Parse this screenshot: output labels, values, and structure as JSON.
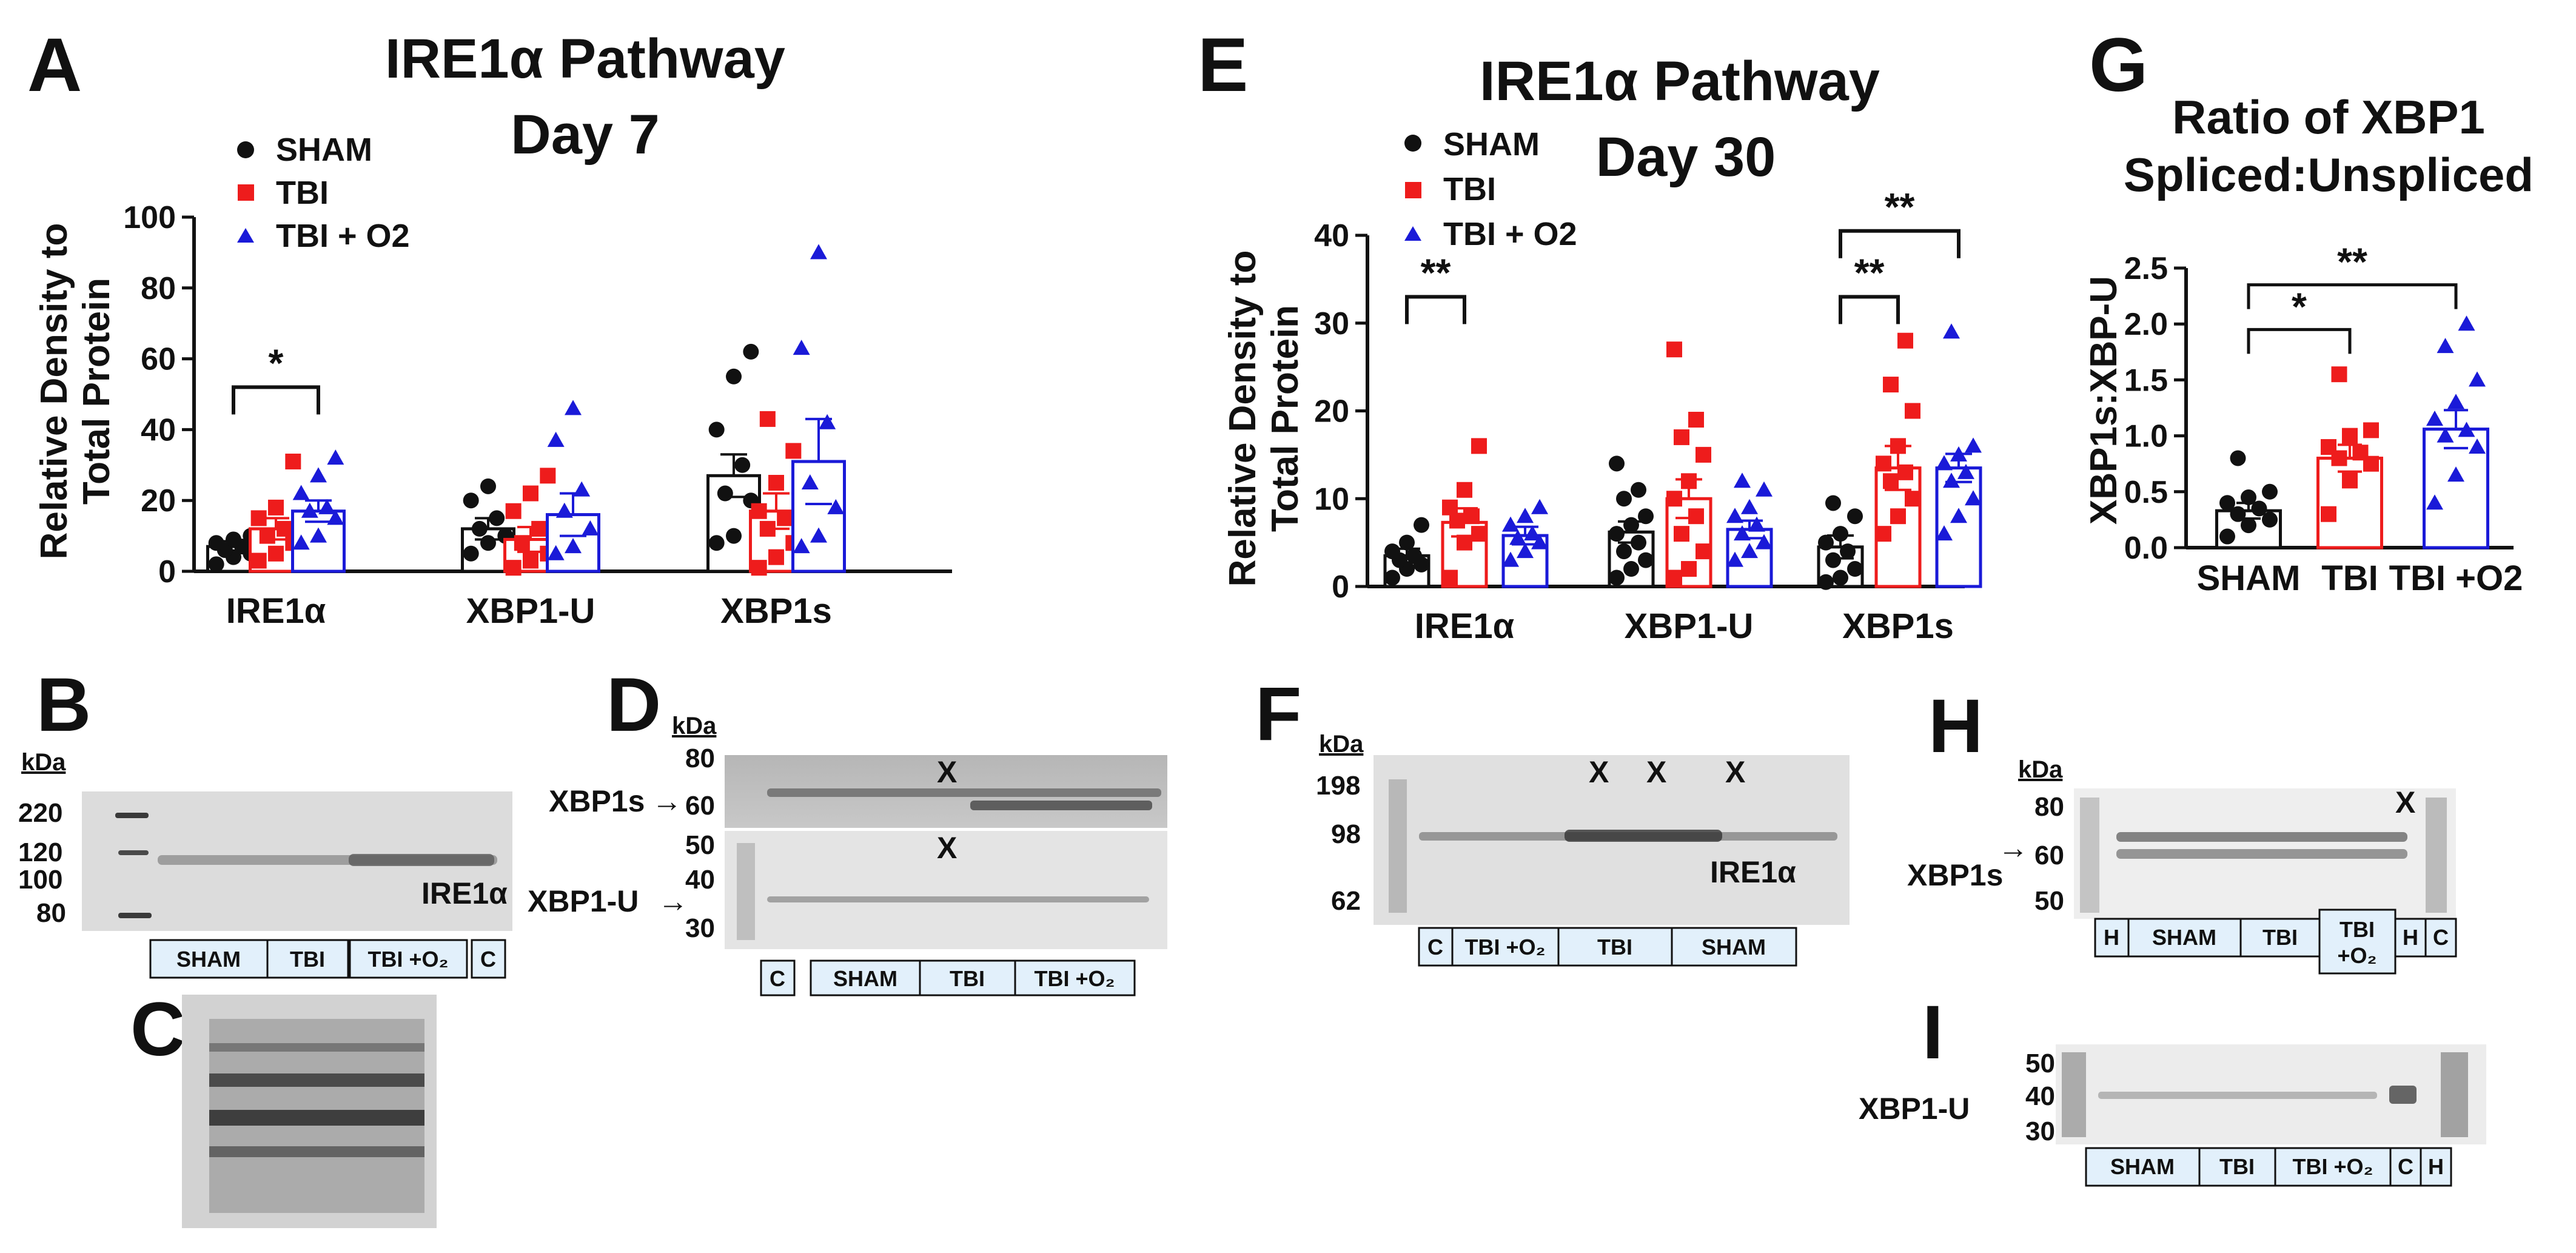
{
  "colors": {
    "sham": "#111111",
    "tbi": "#ee1c1c",
    "tbio2": "#1a1ad8"
  },
  "panels": {
    "A": "A",
    "B": "B",
    "C": "C",
    "D": "D",
    "E": "E",
    "F": "F",
    "G": "G",
    "H": "H",
    "I": "I"
  },
  "legend": {
    "sham": "SHAM",
    "tbi": "TBI",
    "tbio2": "TBI + O2"
  },
  "chart_data": [
    {
      "id": "A",
      "type": "bar",
      "title": "IRE1α Pathway",
      "title2": "Day 7",
      "ylabel": "Relative Density to",
      "ylabel2": "Total Protein",
      "xlabel": "",
      "ylim": [
        0,
        100
      ],
      "yticks": [
        "0",
        "20",
        "40",
        "60",
        "80",
        "100"
      ],
      "categories": [
        "IRE1α",
        "XBP1-U",
        "XBP1s"
      ],
      "series": [
        {
          "name": "SHAM",
          "values": [
            7,
            12,
            27
          ],
          "errors": [
            1.5,
            3,
            6
          ],
          "points": [
            [
              2,
              4,
              5,
              6,
              7,
              8,
              9,
              10
            ],
            [
              5,
              8,
              10,
              12,
              15,
              20,
              24
            ],
            [
              8,
              10,
              20,
              22,
              30,
              40,
              55,
              62
            ]
          ]
        },
        {
          "name": "TBI",
          "values": [
            12,
            9,
            17
          ],
          "errors": [
            3,
            3.5,
            5
          ],
          "points": [
            [
              3,
              5,
              8,
              10,
              12,
              15,
              18,
              31
            ],
            [
              1,
              3,
              5,
              8,
              12,
              17,
              22,
              27
            ],
            [
              1,
              4,
              8,
              12,
              15,
              17,
              25,
              34,
              43
            ]
          ]
        },
        {
          "name": "TBI + O2",
          "values": [
            17,
            16,
            31
          ],
          "errors": [
            3,
            6,
            12
          ],
          "points": [
            [
              8,
              10,
              15,
              17,
              18,
              22,
              27,
              32
            ],
            [
              5,
              7,
              12,
              17,
              23,
              37,
              46
            ],
            [
              7,
              10,
              18,
              25,
              42,
              63,
              90
            ]
          ]
        }
      ],
      "annotations": [
        {
          "from": 0,
          "to": 2,
          "group": 0,
          "label": "*",
          "y": 52
        }
      ]
    },
    {
      "id": "E",
      "type": "bar",
      "title": "IRE1α  Pathway",
      "title2": "Day 30",
      "ylabel": "Relative Density to",
      "ylabel2": "Total Protein",
      "xlabel": "",
      "ylim": [
        0,
        40
      ],
      "yticks": [
        "0",
        "10",
        "20",
        "30",
        "40"
      ],
      "categories": [
        "IRE1α",
        "XBP1-U",
        "XBP1s"
      ],
      "series": [
        {
          "name": "SHAM",
          "values": [
            3.5,
            6.2,
            4.5
          ],
          "errors": [
            0.8,
            1.2,
            1.3
          ],
          "points": [
            [
              1,
              2,
              2.5,
              3,
              3.5,
              4,
              5,
              7
            ],
            [
              1,
              2,
              3,
              4,
              5,
              6,
              7,
              8,
              10,
              11,
              14
            ],
            [
              0.5,
              1,
              2,
              3,
              4,
              5,
              6,
              8,
              9.5
            ]
          ]
        },
        {
          "name": "TBI",
          "values": [
            7.3,
            10,
            13.5
          ],
          "errors": [
            1.6,
            2.2,
            2.5
          ],
          "points": [
            [
              1,
              5,
              6,
              7.5,
              8,
              9,
              11,
              16
            ],
            [
              1,
              2,
              4,
              6,
              8,
              10,
              12,
              15,
              17,
              19,
              27
            ],
            [
              6,
              8,
              10,
              12,
              13,
              14,
              16,
              20,
              23,
              28
            ]
          ]
        },
        {
          "name": "TBI + O2",
          "values": [
            5.8,
            6.5,
            13.5
          ],
          "errors": [
            1.0,
            1.0,
            1.6
          ],
          "points": [
            [
              3,
              4,
              5,
              5.5,
              6,
              7,
              8,
              9
            ],
            [
              3,
              4,
              5,
              6,
              7,
              8,
              9,
              11,
              12
            ],
            [
              6,
              8,
              10,
              12,
              13,
              14,
              15,
              16,
              29
            ]
          ]
        }
      ],
      "annotations": [
        {
          "from": 0,
          "to": 1,
          "group": 0,
          "label": "**",
          "y": 33
        },
        {
          "from": 0,
          "to": 1,
          "group": 2,
          "label": "**",
          "y": 33
        },
        {
          "from": 0,
          "to": 2,
          "group": 2,
          "label": "**",
          "y": 40.5
        }
      ]
    },
    {
      "id": "G",
      "type": "bar",
      "title": "Ratio of XBP1",
      "title2": "Spliced:Unspliced",
      "ylabel": "XBP1s:XBP-U",
      "xlabel": "",
      "ylim": [
        0,
        2.5
      ],
      "yticks": [
        "0.0",
        "0.5",
        "1.0",
        "1.5",
        "2.0",
        "2.5"
      ],
      "categories": [
        "SHAM",
        "TBI",
        "TBI +O2"
      ],
      "values": [
        0.33,
        0.8,
        1.06
      ],
      "errors": [
        0.07,
        0.12,
        0.17
      ],
      "points": [
        [
          0.1,
          0.2,
          0.25,
          0.3,
          0.35,
          0.4,
          0.45,
          0.5,
          0.8
        ],
        [
          0.3,
          0.6,
          0.75,
          0.8,
          0.85,
          0.9,
          1.0,
          1.05,
          1.55
        ],
        [
          0.4,
          0.65,
          0.9,
          1.0,
          1.05,
          1.15,
          1.3,
          1.5,
          1.8,
          2.0
        ]
      ],
      "annotations": [
        {
          "from": 0,
          "to": 1,
          "label": "*",
          "y": 1.95
        },
        {
          "from": 0,
          "to": 2,
          "label": "**",
          "y": 2.35
        }
      ]
    }
  ],
  "blots": {
    "kda": "kDa",
    "b": {
      "mw": [
        "220",
        "120",
        "100",
        "80"
      ],
      "label": "IRE1α",
      "lanes": [
        "SHAM",
        "TBI",
        "TBI +O₂",
        "C"
      ]
    },
    "d": {
      "mw": [
        "80",
        "60",
        "50",
        "40",
        "30"
      ],
      "label_s": "XBP1s",
      "label_u": "XBP1-U",
      "x1": "X",
      "x2": "X",
      "lanes": [
        "C",
        "SHAM",
        "TBI",
        "TBI +O₂"
      ]
    },
    "f": {
      "mw": [
        "198",
        "98",
        "62"
      ],
      "label": "IRE1α",
      "x": [
        "X",
        "X",
        "X"
      ],
      "lanes": [
        "C",
        "TBI +O₂",
        "TBI",
        "SHAM"
      ]
    },
    "h": {
      "mw": [
        "80",
        "60",
        "50"
      ],
      "label": "XBP1s",
      "x": "X",
      "lanes": [
        "H",
        "SHAM",
        "TBI",
        "TBI",
        "+O₂",
        "H",
        "C"
      ]
    },
    "i": {
      "mw": [
        "50",
        "40",
        "30"
      ],
      "label": "XBP1-U",
      "lanes": [
        "SHAM",
        "TBI",
        "TBI +O₂",
        "C",
        "H"
      ]
    }
  }
}
